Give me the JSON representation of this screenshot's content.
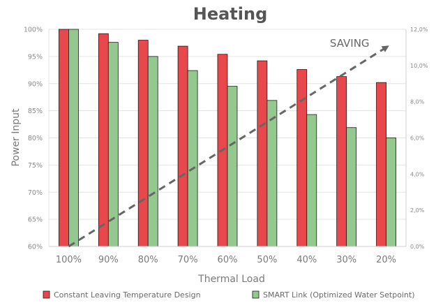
{
  "chart_data": {
    "type": "bar",
    "title": "Heating",
    "xlabel": "Thermal Load",
    "ylabel": "Power Input",
    "categories": [
      "100%",
      "90%",
      "80%",
      "70%",
      "60%",
      "50%",
      "40%",
      "30%",
      "20%"
    ],
    "series": [
      {
        "name": "Constant Leaving Temperature Design",
        "color": "#e8484c",
        "values": [
          100,
          99.2,
          98.0,
          96.9,
          95.4,
          94.2,
          92.6,
          91.3,
          90.2
        ]
      },
      {
        "name": "SMART Link (Optimized Water Setpoint)",
        "color": "#93c98f",
        "values": [
          100,
          97.6,
          95.0,
          92.4,
          89.5,
          86.9,
          84.3,
          81.9,
          80.0
        ]
      }
    ],
    "ylim": [
      60,
      100
    ],
    "yticks": [
      "100%",
      "95%",
      "90%",
      "85%",
      "80%",
      "75%",
      "70%",
      "65%",
      "60%"
    ],
    "y2lim": [
      0,
      12
    ],
    "y2ticks": [
      "12,0%",
      "10,0%",
      "8,0%",
      "6,0%",
      "4,0%",
      "2,0%",
      "0,0%"
    ],
    "saving_line": {
      "label": "SAVING",
      "x": [
        "100%",
        "20%"
      ],
      "y2": [
        0,
        11
      ]
    },
    "grid": true,
    "legend_position": "bottom"
  }
}
